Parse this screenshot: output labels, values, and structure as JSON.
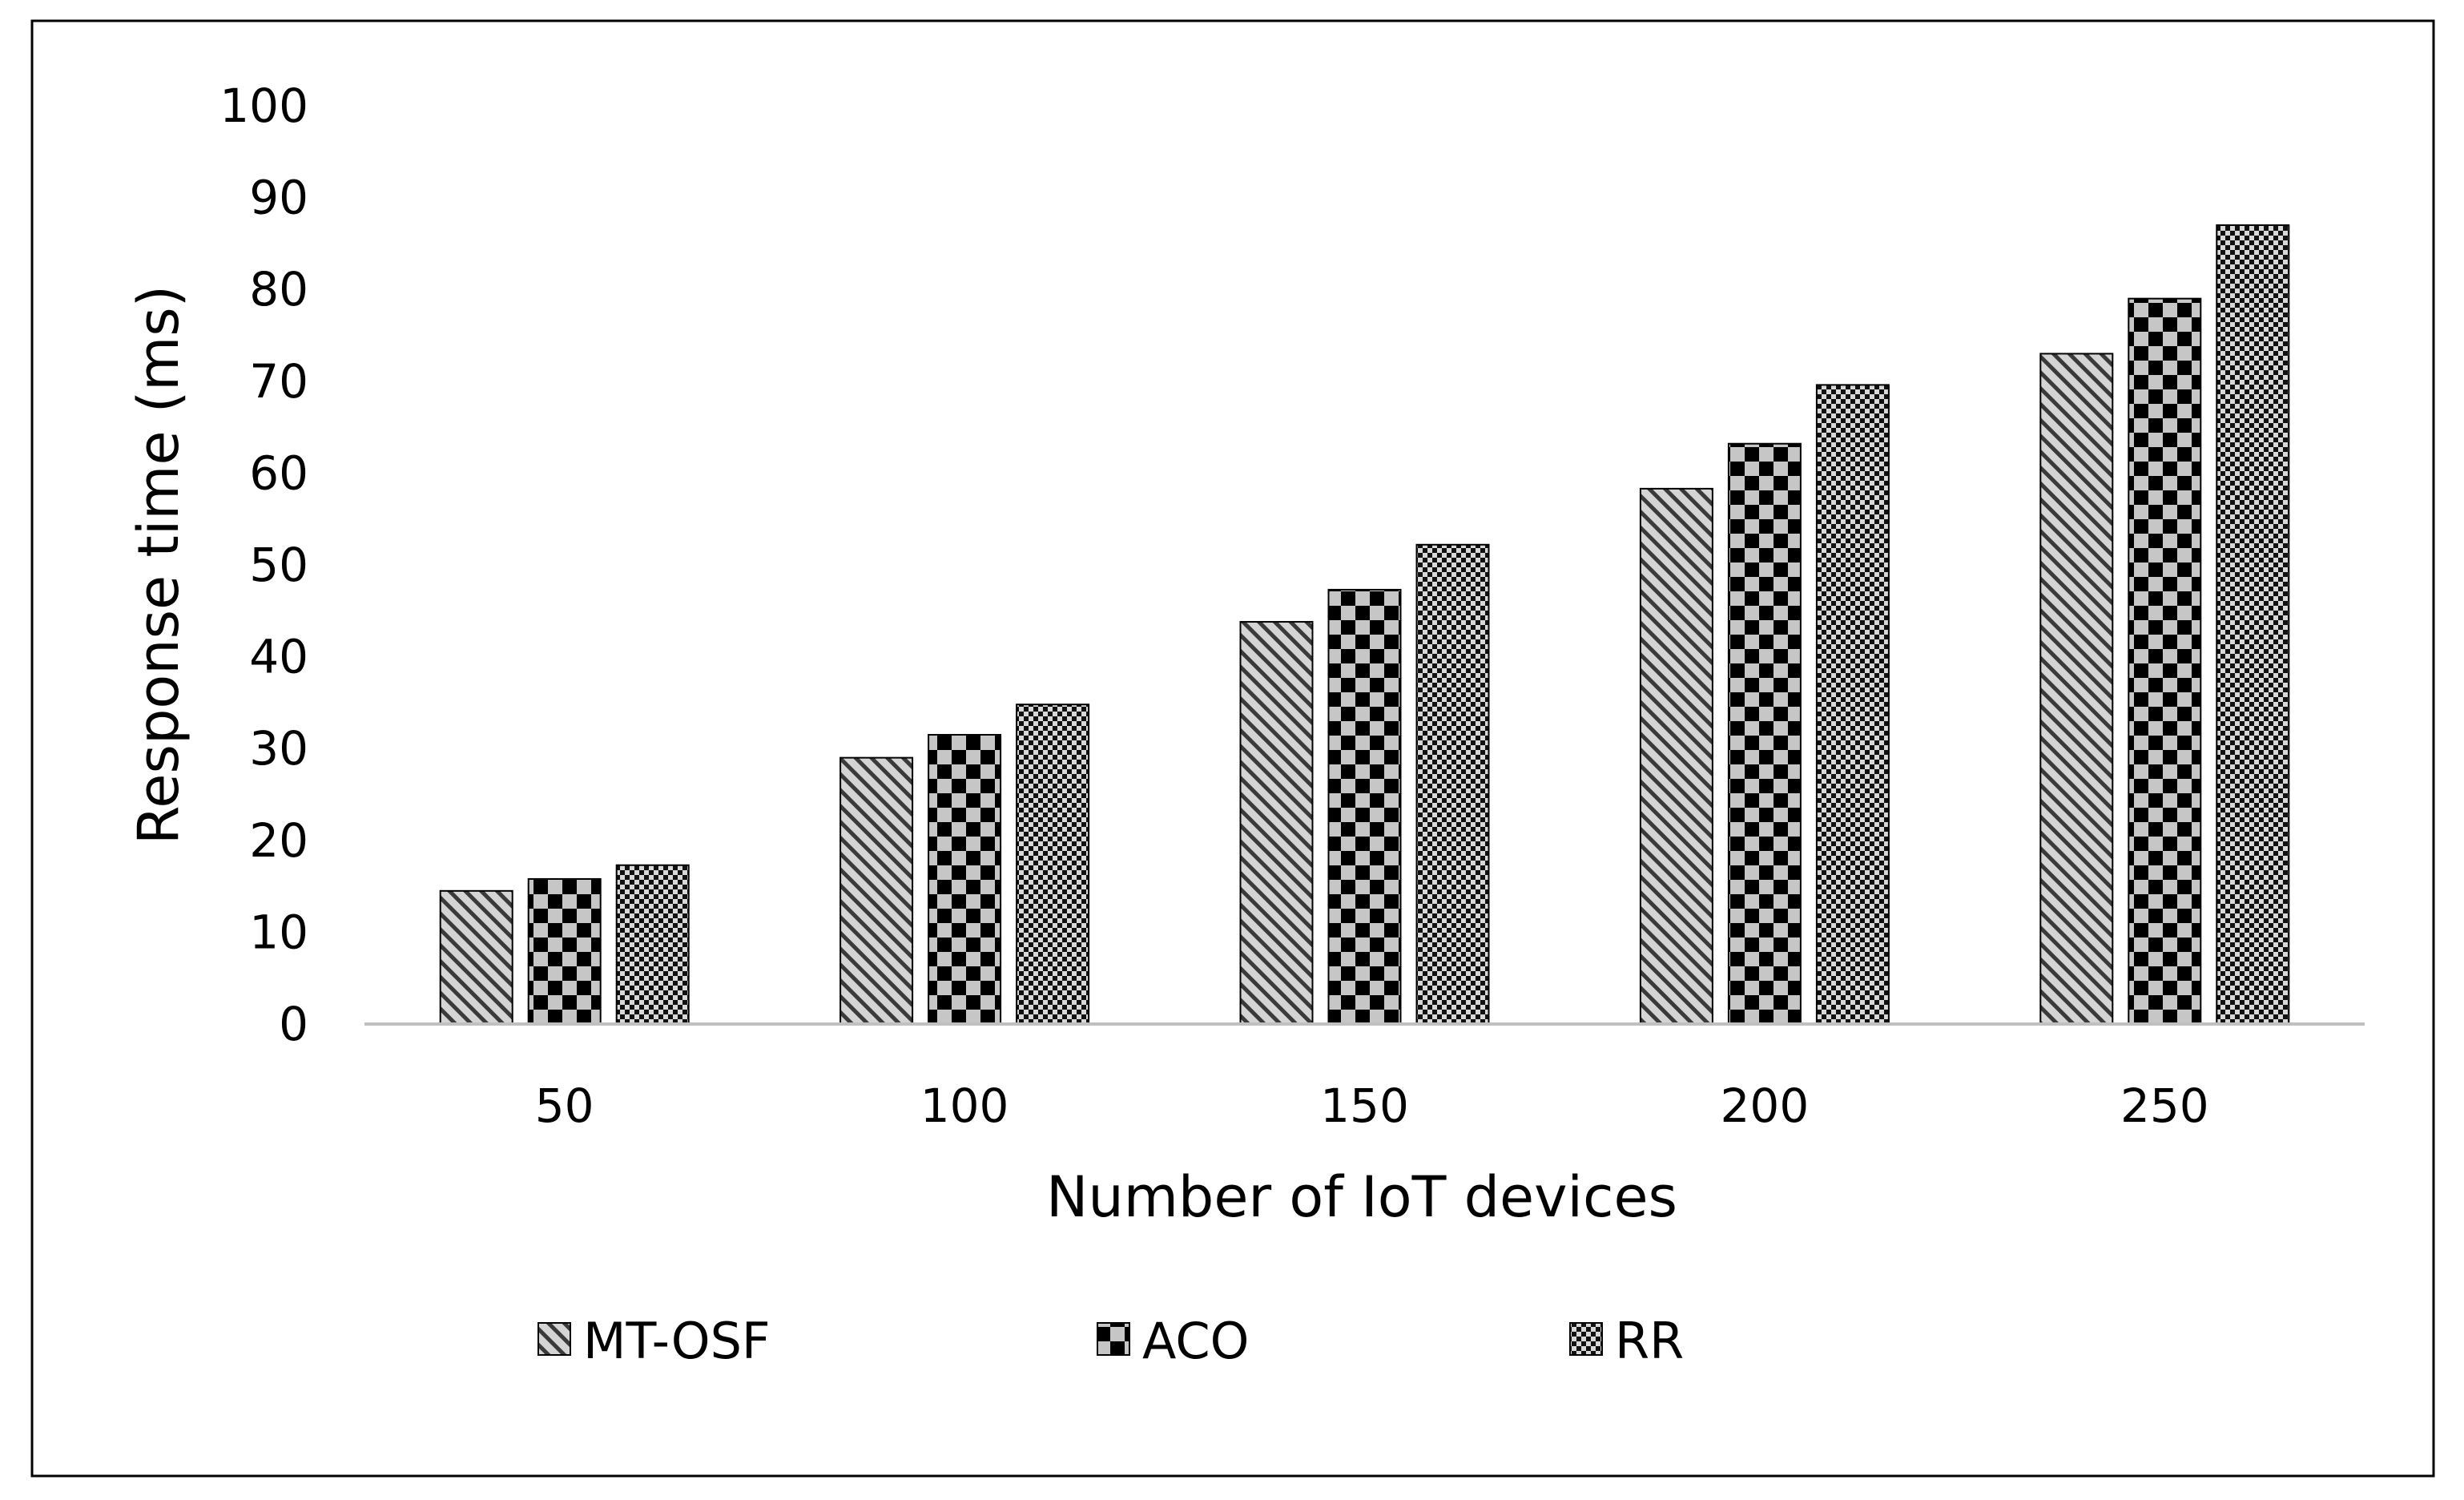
{
  "chart_data": {
    "type": "bar",
    "title": "",
    "xlabel": "Number of IoT devices",
    "ylabel": "Response time (ms)",
    "categories": [
      "50",
      "100",
      "150",
      "200",
      "250"
    ],
    "series": [
      {
        "name": "MT-OSF",
        "values": [
          14.5,
          29,
          43.8,
          58.3,
          73
        ],
        "pattern": "diagonal-hatch"
      },
      {
        "name": "ACO",
        "values": [
          15.8,
          31.5,
          47.3,
          63.2,
          79
        ],
        "pattern": "checkerboard"
      },
      {
        "name": "RR",
        "values": [
          17.3,
          34.8,
          52.2,
          69.6,
          87
        ],
        "pattern": "fine-checkerboard"
      }
    ],
    "ylim": [
      0,
      100
    ],
    "yticks": [
      0,
      10,
      20,
      30,
      40,
      50,
      60,
      70,
      80,
      90,
      100
    ],
    "grid": false,
    "legend_position": "bottom",
    "colors": {
      "bar_fill_light": "#c8c8c8",
      "bar_dark": "#000000",
      "axis": "#c0c0c0",
      "frame": "#000000"
    }
  }
}
